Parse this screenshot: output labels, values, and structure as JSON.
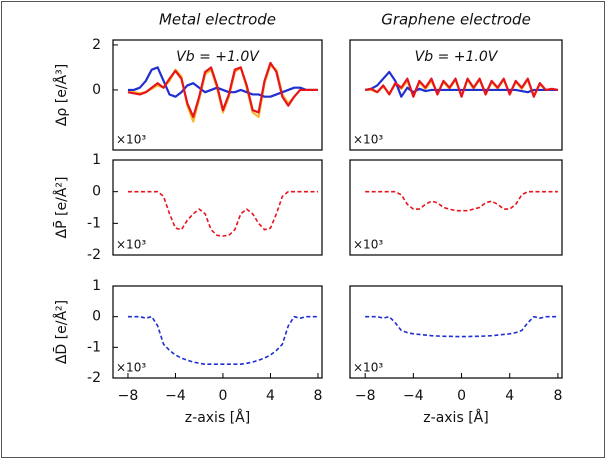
{
  "chart_data": [
    {
      "type": "line",
      "title": "Metal electrode",
      "y_label": "Δρ [e/Å³]",
      "annotation": "Vb = +1.0V",
      "scale_label": "×10³",
      "x": [
        -8,
        -7.5,
        -7,
        -6.5,
        -6,
        -5.5,
        -5,
        -4.5,
        -4,
        -3.5,
        -3,
        -2.5,
        -2,
        -1.5,
        -1,
        -0.5,
        0,
        0.5,
        1,
        1.5,
        2,
        2.5,
        3,
        3.5,
        4,
        4.5,
        5,
        5.5,
        6,
        6.5,
        7,
        7.5,
        8
      ],
      "xlim": [
        -9.26,
        8.34
      ],
      "ylim": [
        -2.67,
        2.22
      ],
      "yticks": [
        0,
        2
      ],
      "series": [
        {
          "color": "#f5b82e",
          "values": [
            -0.1,
            -0.1,
            -0.15,
            -0.1,
            0.05,
            0.2,
            0.1,
            0.4,
            0.9,
            0.6,
            -0.7,
            -1.4,
            -0.4,
            0.7,
            0.9,
            0.1,
            -1.0,
            -0.3,
            0.8,
            1.0,
            0.1,
            -1.0,
            -1.2,
            0.3,
            1.1,
            0.9,
            -0.2,
            -0.6,
            -0.3,
            0,
            0,
            0,
            0
          ]
        },
        {
          "color": "#1f2fd0",
          "values": [
            0,
            0,
            0.1,
            0.4,
            0.9,
            1.0,
            0.4,
            -0.2,
            -0.3,
            -0.1,
            0.2,
            0.3,
            0.1,
            -0.1,
            0,
            0.1,
            0,
            -0.1,
            -0.1,
            0,
            -0.1,
            -0.2,
            -0.2,
            -0.3,
            -0.3,
            -0.2,
            -0.1,
            0,
            0.1,
            0.1,
            0,
            0,
            0
          ]
        },
        {
          "color": "#e8141c",
          "values": [
            -0.1,
            -0.15,
            -0.2,
            -0.1,
            0.1,
            0.3,
            0.1,
            0.5,
            0.85,
            0.5,
            -0.6,
            -1.2,
            -0.3,
            0.8,
            1.0,
            0.2,
            -0.9,
            -0.2,
            0.9,
            1.0,
            0.2,
            -0.9,
            -1.0,
            0.4,
            1.2,
            0.8,
            -0.3,
            -0.7,
            -0.3,
            0,
            0,
            0,
            0
          ]
        }
      ]
    },
    {
      "type": "line",
      "title": "Graphene electrode",
      "annotation": "Vb = +1.0V",
      "scale_label": "×10³",
      "x": [
        -8,
        -7.5,
        -7,
        -6.5,
        -6,
        -5.5,
        -5,
        -4.5,
        -4,
        -3.5,
        -3,
        -2.5,
        -2,
        -1.5,
        -1,
        -0.5,
        0,
        0.5,
        1,
        1.5,
        2,
        2.5,
        3,
        3.5,
        4,
        4.5,
        5,
        5.5,
        6,
        6.5,
        7,
        7.5,
        8
      ],
      "xlim": [
        -9.26,
        8.34
      ],
      "ylim": [
        -2.67,
        2.22
      ],
      "series": [
        {
          "color": "#f5b82e",
          "values": [
            0,
            0,
            -0.1,
            0.15,
            -0.15,
            0.25,
            0.05,
            0.4,
            -0.25,
            0.35,
            0.05,
            0.4,
            -0.15,
            0.35,
            0.05,
            0.45,
            -0.25,
            0.45,
            0.05,
            0.45,
            -0.15,
            0.35,
            0.05,
            0.45,
            -0.15,
            0.35,
            0.05,
            0.45,
            -0.25,
            0.25,
            0,
            0,
            0
          ]
        },
        {
          "color": "#1f2fd0",
          "values": [
            0,
            0.05,
            0.2,
            0.5,
            0.8,
            0.4,
            -0.3,
            0.1,
            -0.1,
            0.05,
            -0.05,
            0,
            0,
            0,
            0,
            0,
            0,
            0,
            0,
            0,
            0,
            0,
            0,
            0,
            0,
            0,
            -0.05,
            -0.1,
            0,
            0,
            0,
            0,
            0
          ]
        },
        {
          "color": "#e8141c",
          "values": [
            0,
            0.05,
            -0.1,
            0.2,
            -0.2,
            0.3,
            0.1,
            0.5,
            -0.3,
            0.4,
            0.1,
            0.5,
            -0.2,
            0.4,
            0.1,
            0.5,
            -0.3,
            0.5,
            0.1,
            0.5,
            -0.2,
            0.4,
            0.1,
            0.5,
            -0.2,
            0.4,
            0.1,
            0.5,
            -0.3,
            0.3,
            0,
            0.05,
            0
          ]
        }
      ]
    },
    {
      "type": "line",
      "y_label": "ΔP̄ [e/Å²]",
      "scale_label": "×10³",
      "x": [
        -8,
        -7.5,
        -7,
        -6.5,
        -6,
        -5.5,
        -5,
        -4.5,
        -4,
        -3.5,
        -3,
        -2.5,
        -2,
        -1.5,
        -1,
        -0.5,
        0,
        0.5,
        1,
        1.5,
        2,
        2.5,
        3,
        3.5,
        4,
        4.5,
        5,
        5.5,
        6,
        6.5,
        7,
        7.5,
        8
      ],
      "xlim": [
        -9.26,
        8.34
      ],
      "ylim": [
        -2,
        1
      ],
      "yticks": [
        -2,
        -1,
        0,
        1
      ],
      "series": [
        {
          "color": "#e8141c",
          "dashed": true,
          "values": [
            0,
            0,
            0,
            0,
            0,
            0,
            -0.15,
            -0.7,
            -1.15,
            -1.2,
            -0.9,
            -0.7,
            -0.55,
            -0.7,
            -1.2,
            -1.38,
            -1.4,
            -1.38,
            -1.2,
            -0.7,
            -0.55,
            -0.7,
            -1.0,
            -1.2,
            -1.15,
            -0.7,
            -0.15,
            0,
            0,
            0,
            0,
            0,
            0
          ]
        }
      ]
    },
    {
      "type": "line",
      "scale_label": "×10³",
      "x": [
        -8,
        -7.5,
        -7,
        -6.5,
        -6,
        -5.5,
        -5,
        -4.5,
        -4,
        -3.5,
        -3,
        -2.5,
        -2,
        -1.5,
        -1,
        -0.5,
        0,
        0.5,
        1,
        1.5,
        2,
        2.5,
        3,
        3.5,
        4,
        4.5,
        5,
        5.5,
        6,
        6.5,
        7,
        7.5,
        8
      ],
      "xlim": [
        -9.26,
        8.34
      ],
      "ylim": [
        -2,
        1
      ],
      "series": [
        {
          "color": "#e8141c",
          "dashed": true,
          "values": [
            0,
            0,
            0,
            0,
            0,
            0,
            -0.1,
            -0.4,
            -0.55,
            -0.55,
            -0.4,
            -0.3,
            -0.35,
            -0.5,
            -0.55,
            -0.6,
            -0.6,
            -0.6,
            -0.55,
            -0.5,
            -0.35,
            -0.3,
            -0.4,
            -0.55,
            -0.55,
            -0.4,
            -0.1,
            0,
            0,
            0,
            0,
            0,
            0
          ]
        }
      ]
    },
    {
      "type": "line",
      "y_label": "ΔD̄ [e/Å²]",
      "x_label": "z-axis [Å]",
      "scale_label": "×10³",
      "x": [
        -8,
        -7.5,
        -7,
        -6.5,
        -6,
        -5.5,
        -5,
        -4.5,
        -4,
        -3.5,
        -3,
        -2.5,
        -2,
        -1.5,
        -1,
        -0.5,
        0,
        0.5,
        1,
        1.5,
        2,
        2.5,
        3,
        3.5,
        4,
        4.5,
        5,
        5.5,
        6,
        6.5,
        7,
        7.5,
        8
      ],
      "xlim": [
        -9.26,
        8.34
      ],
      "ylim": [
        -2,
        1
      ],
      "xticks": [
        {
          "value": -8,
          "label": "−8"
        },
        {
          "value": -4,
          "label": "−4"
        },
        0,
        4,
        8
      ],
      "yticks": [
        -2,
        -1,
        0,
        1
      ],
      "series": [
        {
          "color": "#1f2fd0",
          "dashed": true,
          "values": [
            0,
            0,
            0,
            -0.05,
            0,
            -0.3,
            -0.9,
            -1.1,
            -1.25,
            -1.35,
            -1.42,
            -1.48,
            -1.52,
            -1.55,
            -1.55,
            -1.55,
            -1.55,
            -1.55,
            -1.55,
            -1.55,
            -1.52,
            -1.48,
            -1.42,
            -1.35,
            -1.25,
            -1.1,
            -0.9,
            -0.3,
            0,
            -0.05,
            0,
            0,
            0
          ]
        }
      ]
    },
    {
      "type": "line",
      "x_label": "z-axis [Å]",
      "scale_label": "×10³",
      "x": [
        -8,
        -7.5,
        -7,
        -6.5,
        -6,
        -5.5,
        -5,
        -4.5,
        -4,
        -3.5,
        -3,
        -2.5,
        -2,
        -1.5,
        -1,
        -0.5,
        0,
        0.5,
        1,
        1.5,
        2,
        2.5,
        3,
        3.5,
        4,
        4.5,
        5,
        5.5,
        6,
        6.5,
        7,
        7.5,
        8
      ],
      "xlim": [
        -9.26,
        8.34
      ],
      "ylim": [
        -2,
        1
      ],
      "xticks": [
        {
          "value": -8,
          "label": "−8"
        },
        {
          "value": -4,
          "label": "−4"
        },
        0,
        4,
        8
      ],
      "series": [
        {
          "color": "#1f2fd0",
          "dashed": true,
          "values": [
            0,
            0,
            0,
            -0.05,
            0,
            -0.2,
            -0.45,
            -0.52,
            -0.56,
            -0.58,
            -0.6,
            -0.62,
            -0.63,
            -0.64,
            -0.64,
            -0.65,
            -0.65,
            -0.65,
            -0.64,
            -0.64,
            -0.63,
            -0.62,
            -0.6,
            -0.58,
            -0.56,
            -0.52,
            -0.45,
            -0.2,
            0,
            -0.05,
            0,
            0,
            0
          ]
        }
      ]
    }
  ]
}
